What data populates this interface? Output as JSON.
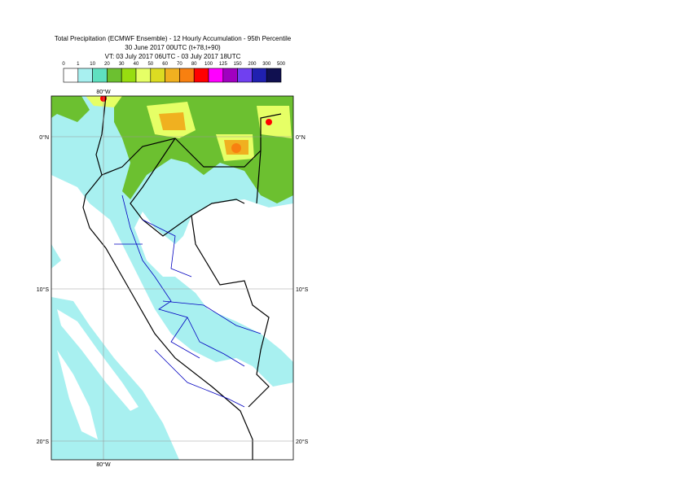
{
  "header": {
    "lines": [
      "Total Precipitation (ECMWF Ensemble) - 12 Hourly Accumulation - 95th Percentile",
      "30 June 2017 00UTC (t+78,t+90)",
      "VT: 03 July 2017 06UTC - 03 July 2017 18UTC"
    ]
  },
  "legend": {
    "ticks": [
      0,
      1,
      10,
      20,
      30,
      40,
      50,
      60,
      70,
      80,
      100,
      125,
      150,
      200,
      300,
      500
    ],
    "colors": [
      "#ffffff",
      "#a8f0f0",
      "#5fe0c0",
      "#6cc030",
      "#98dd10",
      "#e6ff66",
      "#dcdc22",
      "#f0b020",
      "#f88010",
      "#ff0000",
      "#ff00ff",
      "#a000c0",
      "#7040f0",
      "#2020b0",
      "#101050"
    ]
  },
  "map": {
    "lon_labels": [
      "80°W"
    ],
    "lat_labels": [
      "0°N",
      "10°S",
      "20°S"
    ]
  }
}
